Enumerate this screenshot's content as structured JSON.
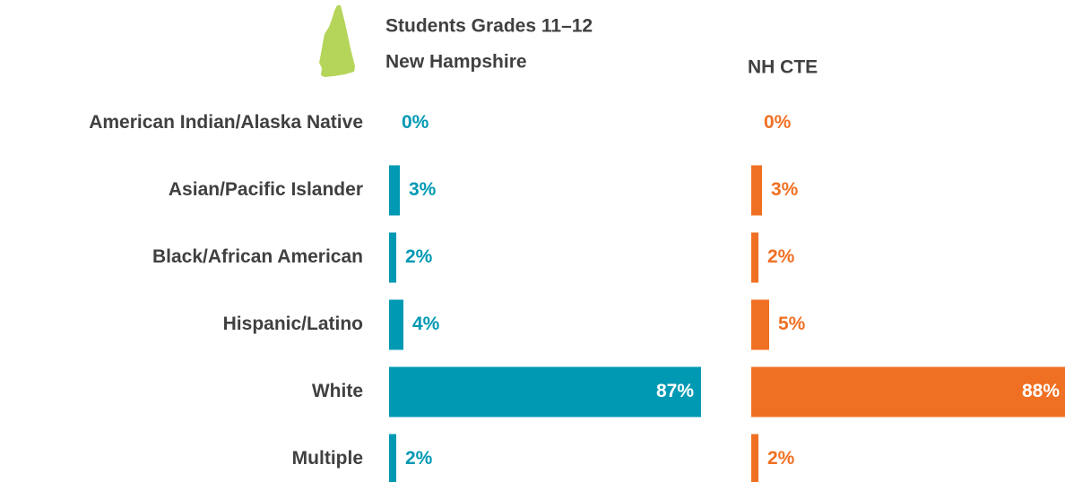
{
  "chart_data": {
    "type": "bar",
    "orientation": "horizontal",
    "title": "Students Grades 11–12",
    "categories": [
      "American Indian/Alaska Native",
      "Asian/Pacific Islander",
      "Black/African American",
      "Hispanic/Latino",
      "White",
      "Multiple"
    ],
    "xlim": [
      0,
      100
    ],
    "series": [
      {
        "name": "New Hampshire",
        "color": "#0099b3",
        "values": [
          0,
          3,
          2,
          4,
          87,
          2
        ],
        "value_labels": [
          "0%",
          "3%",
          "2%",
          "4%",
          "87%",
          "2%"
        ]
      },
      {
        "name": "NH CTE",
        "color": "#f07023",
        "values": [
          0,
          3,
          2,
          5,
          88,
          2
        ],
        "value_labels": [
          "0%",
          "3%",
          "2%",
          "5%",
          "88%",
          "2%"
        ]
      }
    ]
  }
}
